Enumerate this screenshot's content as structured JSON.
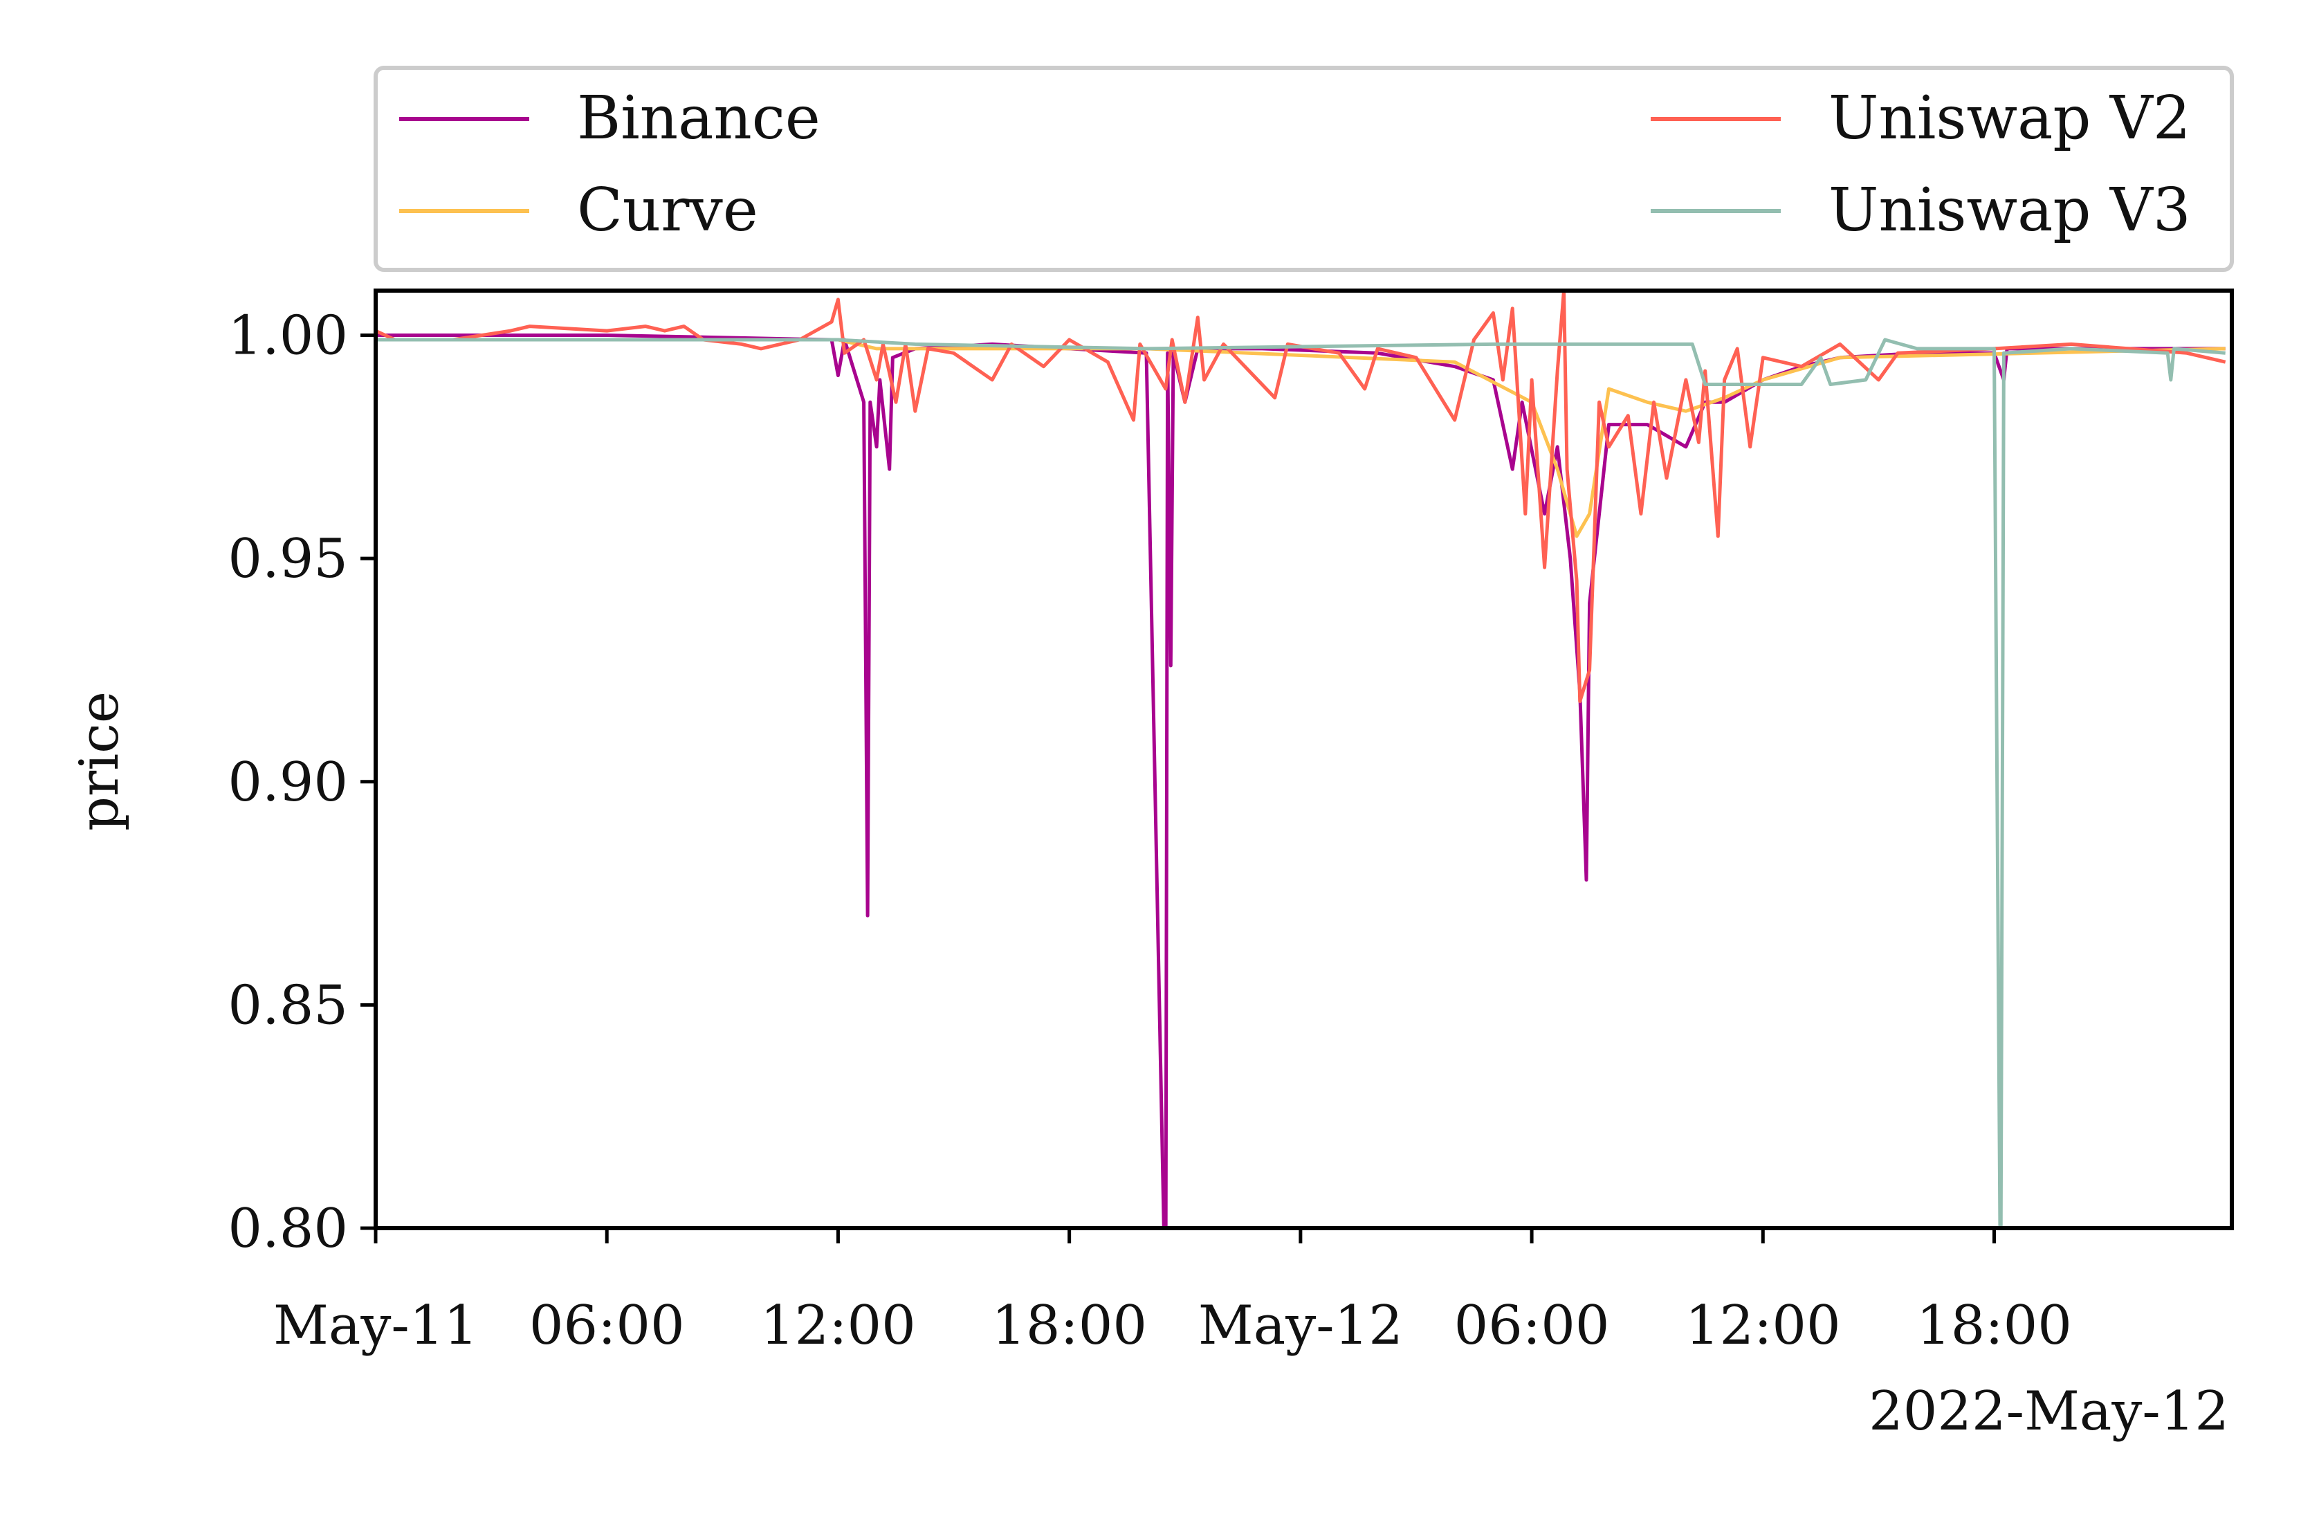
{
  "chart_data": {
    "type": "line",
    "title": "",
    "xlabel": "",
    "ylabel": "price",
    "x_offset_label": "2022-May-12",
    "xlim": [
      "2022-05-11 00:00",
      "2022-05-13 00:10"
    ],
    "ylim": [
      0.8,
      1.01
    ],
    "grid": false,
    "legend": {
      "placement": "top, above plot",
      "columns": 2
    },
    "x_ticks": [
      {
        "t": "2022-05-11 00:00",
        "label": "May-11"
      },
      {
        "t": "2022-05-11 06:00",
        "label": "06:00"
      },
      {
        "t": "2022-05-11 12:00",
        "label": "12:00"
      },
      {
        "t": "2022-05-11 18:00",
        "label": "18:00"
      },
      {
        "t": "2022-05-12 00:00",
        "label": "May-12"
      },
      {
        "t": "2022-05-12 06:00",
        "label": "06:00"
      },
      {
        "t": "2022-05-12 12:00",
        "label": "12:00"
      },
      {
        "t": "2022-05-12 18:00",
        "label": "18:00"
      }
    ],
    "y_ticks": [
      {
        "v": 1.0,
        "label": "1.00"
      },
      {
        "v": 0.95,
        "label": "0.95"
      },
      {
        "v": 0.9,
        "label": "0.90"
      },
      {
        "v": 0.85,
        "label": "0.85"
      },
      {
        "v": 0.8,
        "label": "0.80"
      }
    ],
    "series": [
      {
        "name": "Binance",
        "color": "#A8048E",
        "points": [
          [
            "2022-05-11 00:00",
            1.0
          ],
          [
            "2022-05-11 06:00",
            1.0
          ],
          [
            "2022-05-11 11:50",
            0.999
          ],
          [
            "2022-05-11 12:00",
            0.991
          ],
          [
            "2022-05-11 12:10",
            0.999
          ],
          [
            "2022-05-11 12:40",
            0.985
          ],
          [
            "2022-05-11 12:46",
            0.87
          ],
          [
            "2022-05-11 12:50",
            0.985
          ],
          [
            "2022-05-11 13:00",
            0.975
          ],
          [
            "2022-05-11 13:05",
            0.99
          ],
          [
            "2022-05-11 13:20",
            0.97
          ],
          [
            "2022-05-11 13:25",
            0.995
          ],
          [
            "2022-05-11 14:00",
            0.997
          ],
          [
            "2022-05-11 16:00",
            0.998
          ],
          [
            "2022-05-11 18:00",
            0.997
          ],
          [
            "2022-05-11 20:00",
            0.996
          ],
          [
            "2022-05-11 20:30",
            0.78
          ],
          [
            "2022-05-11 20:33",
            0.996
          ],
          [
            "2022-05-11 20:38",
            0.926
          ],
          [
            "2022-05-11 20:42",
            0.996
          ],
          [
            "2022-05-11 21:00",
            0.985
          ],
          [
            "2022-05-11 21:20",
            0.997
          ],
          [
            "2022-05-11 23:00",
            0.997
          ],
          [
            "2022-05-12 02:00",
            0.996
          ],
          [
            "2022-05-12 04:00",
            0.993
          ],
          [
            "2022-05-12 05:00",
            0.99
          ],
          [
            "2022-05-12 05:30",
            0.97
          ],
          [
            "2022-05-12 05:45",
            0.985
          ],
          [
            "2022-05-12 06:20",
            0.96
          ],
          [
            "2022-05-12 06:40",
            0.975
          ],
          [
            "2022-05-12 07:00",
            0.95
          ],
          [
            "2022-05-12 07:15",
            0.92
          ],
          [
            "2022-05-12 07:25",
            0.878
          ],
          [
            "2022-05-12 07:30",
            0.94
          ],
          [
            "2022-05-12 07:45",
            0.96
          ],
          [
            "2022-05-12 08:00",
            0.98
          ],
          [
            "2022-05-12 09:00",
            0.98
          ],
          [
            "2022-05-12 10:00",
            0.975
          ],
          [
            "2022-05-12 10:30",
            0.985
          ],
          [
            "2022-05-12 11:00",
            0.985
          ],
          [
            "2022-05-12 12:00",
            0.99
          ],
          [
            "2022-05-12 13:00",
            0.993
          ],
          [
            "2022-05-12 14:00",
            0.995
          ],
          [
            "2022-05-12 16:00",
            0.996
          ],
          [
            "2022-05-12 18:00",
            0.996
          ],
          [
            "2022-05-12 18:15",
            0.99
          ],
          [
            "2022-05-12 18:20",
            0.997
          ],
          [
            "2022-05-12 20:00",
            0.997
          ],
          [
            "2022-05-13 00:00",
            0.997
          ]
        ]
      },
      {
        "name": "Curve",
        "color": "#FDC150",
        "points": [
          [
            "2022-05-11 00:00",
            0.999
          ],
          [
            "2022-05-11 12:00",
            0.999
          ],
          [
            "2022-05-11 13:00",
            0.997
          ],
          [
            "2022-05-11 20:00",
            0.997
          ],
          [
            "2022-05-12 04:00",
            0.994
          ],
          [
            "2022-05-12 06:00",
            0.985
          ],
          [
            "2022-05-12 06:40",
            0.97
          ],
          [
            "2022-05-12 07:10",
            0.955
          ],
          [
            "2022-05-12 07:30",
            0.96
          ],
          [
            "2022-05-12 08:00",
            0.988
          ],
          [
            "2022-05-12 09:00",
            0.985
          ],
          [
            "2022-05-12 10:00",
            0.983
          ],
          [
            "2022-05-12 11:00",
            0.986
          ],
          [
            "2022-05-12 12:00",
            0.99
          ],
          [
            "2022-05-12 14:00",
            0.995
          ],
          [
            "2022-05-13 00:00",
            0.997
          ]
        ]
      },
      {
        "name": "Uniswap V2",
        "color": "#FF6153",
        "points": [
          [
            "2022-05-11 00:00",
            1.001
          ],
          [
            "2022-05-11 00:30",
            0.999
          ],
          [
            "2022-05-11 02:00",
            0.999
          ],
          [
            "2022-05-11 03:30",
            1.001
          ],
          [
            "2022-05-11 04:00",
            1.002
          ],
          [
            "2022-05-11 06:00",
            1.001
          ],
          [
            "2022-05-11 07:00",
            1.002
          ],
          [
            "2022-05-11 07:30",
            1.001
          ],
          [
            "2022-05-11 08:00",
            1.002
          ],
          [
            "2022-05-11 08:30",
            0.999
          ],
          [
            "2022-05-11 09:30",
            0.998
          ],
          [
            "2022-05-11 10:00",
            0.997
          ],
          [
            "2022-05-11 11:00",
            0.999
          ],
          [
            "2022-05-11 11:50",
            1.003
          ],
          [
            "2022-05-11 12:00",
            1.008
          ],
          [
            "2022-05-11 12:10",
            0.996
          ],
          [
            "2022-05-11 12:40",
            0.999
          ],
          [
            "2022-05-11 13:00",
            0.99
          ],
          [
            "2022-05-11 13:10",
            0.998
          ],
          [
            "2022-05-11 13:30",
            0.985
          ],
          [
            "2022-05-11 13:45",
            0.998
          ],
          [
            "2022-05-11 14:00",
            0.983
          ],
          [
            "2022-05-11 14:20",
            0.997
          ],
          [
            "2022-05-11 15:00",
            0.996
          ],
          [
            "2022-05-11 16:00",
            0.99
          ],
          [
            "2022-05-11 16:30",
            0.998
          ],
          [
            "2022-05-11 17:20",
            0.993
          ],
          [
            "2022-05-11 18:00",
            0.999
          ],
          [
            "2022-05-11 19:00",
            0.994
          ],
          [
            "2022-05-11 19:40",
            0.981
          ],
          [
            "2022-05-11 19:50",
            0.998
          ],
          [
            "2022-05-11 20:30",
            0.988
          ],
          [
            "2022-05-11 20:40",
            0.999
          ],
          [
            "2022-05-11 21:00",
            0.985
          ],
          [
            "2022-05-11 21:20",
            1.004
          ],
          [
            "2022-05-11 21:30",
            0.99
          ],
          [
            "2022-05-11 22:00",
            0.998
          ],
          [
            "2022-05-11 23:20",
            0.986
          ],
          [
            "2022-05-11 23:40",
            0.998
          ],
          [
            "2022-05-12 01:00",
            0.996
          ],
          [
            "2022-05-12 01:40",
            0.988
          ],
          [
            "2022-05-12 02:00",
            0.997
          ],
          [
            "2022-05-12 03:00",
            0.995
          ],
          [
            "2022-05-12 04:00",
            0.981
          ],
          [
            "2022-05-12 04:30",
            0.999
          ],
          [
            "2022-05-12 05:00",
            1.005
          ],
          [
            "2022-05-12 05:15",
            0.99
          ],
          [
            "2022-05-12 05:30",
            1.006
          ],
          [
            "2022-05-12 05:50",
            0.96
          ],
          [
            "2022-05-12 06:00",
            0.99
          ],
          [
            "2022-05-12 06:20",
            0.948
          ],
          [
            "2022-05-12 06:40",
            0.992
          ],
          [
            "2022-05-12 06:50",
            1.01
          ],
          [
            "2022-05-12 06:55",
            0.97
          ],
          [
            "2022-05-12 07:10",
            0.945
          ],
          [
            "2022-05-12 07:15",
            0.918
          ],
          [
            "2022-05-12 07:30",
            0.925
          ],
          [
            "2022-05-12 07:45",
            0.985
          ],
          [
            "2022-05-12 08:00",
            0.975
          ],
          [
            "2022-05-12 08:30",
            0.982
          ],
          [
            "2022-05-12 08:50",
            0.96
          ],
          [
            "2022-05-12 09:10",
            0.985
          ],
          [
            "2022-05-12 09:30",
            0.968
          ],
          [
            "2022-05-12 10:00",
            0.99
          ],
          [
            "2022-05-12 10:20",
            0.976
          ],
          [
            "2022-05-12 10:30",
            0.992
          ],
          [
            "2022-05-12 10:50",
            0.955
          ],
          [
            "2022-05-12 11:00",
            0.99
          ],
          [
            "2022-05-12 11:20",
            0.997
          ],
          [
            "2022-05-12 11:40",
            0.975
          ],
          [
            "2022-05-12 12:00",
            0.995
          ],
          [
            "2022-05-12 13:00",
            0.993
          ],
          [
            "2022-05-12 14:00",
            0.998
          ],
          [
            "2022-05-12 15:00",
            0.99
          ],
          [
            "2022-05-12 15:30",
            0.996
          ],
          [
            "2022-05-12 18:00",
            0.997
          ],
          [
            "2022-05-12 20:00",
            0.998
          ],
          [
            "2022-05-12 23:00",
            0.996
          ],
          [
            "2022-05-13 00:00",
            0.994
          ]
        ]
      },
      {
        "name": "Uniswap V3",
        "color": "#93BEB0",
        "points": [
          [
            "2022-05-11 00:00",
            0.999
          ],
          [
            "2022-05-11 12:00",
            0.999
          ],
          [
            "2022-05-11 14:00",
            0.998
          ],
          [
            "2022-05-11 20:00",
            0.997
          ],
          [
            "2022-05-12 05:00",
            0.998
          ],
          [
            "2022-05-12 10:10",
            0.998
          ],
          [
            "2022-05-12 10:30",
            0.989
          ],
          [
            "2022-05-12 13:00",
            0.989
          ],
          [
            "2022-05-12 13:30",
            0.995
          ],
          [
            "2022-05-12 13:45",
            0.989
          ],
          [
            "2022-05-12 14:40",
            0.99
          ],
          [
            "2022-05-12 15:10",
            0.999
          ],
          [
            "2022-05-12 16:00",
            0.997
          ],
          [
            "2022-05-12 18:00",
            0.997
          ],
          [
            "2022-05-12 18:10",
            0.78
          ],
          [
            "2022-05-12 18:15",
            0.996
          ],
          [
            "2022-05-12 20:00",
            0.997
          ],
          [
            "2022-05-12 22:30",
            0.996
          ],
          [
            "2022-05-12 22:35",
            0.99
          ],
          [
            "2022-05-12 22:40",
            0.997
          ],
          [
            "2022-05-13 00:00",
            0.996
          ]
        ]
      }
    ]
  }
}
